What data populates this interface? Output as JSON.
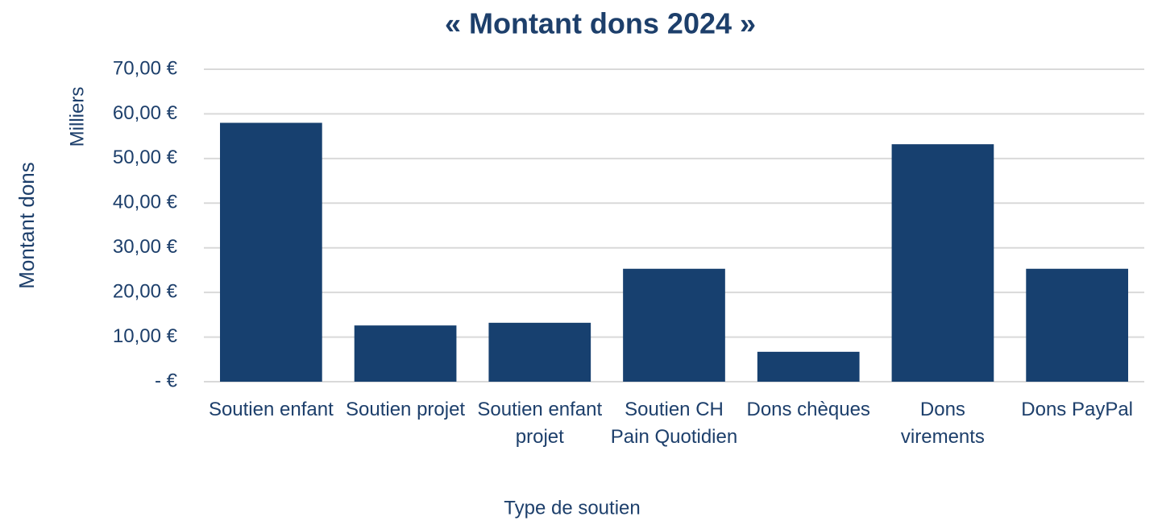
{
  "chart_data": {
    "type": "bar",
    "title": "« Montant dons 2024 »",
    "x_label": "Type de soutien",
    "y_label": "Montant dons",
    "y_unit_label": "Milliers",
    "categories": [
      "Soutien enfant",
      "Soutien projet",
      "Soutien enfant projet",
      "Soutien CH Pain Quotidien",
      "Dons chèques",
      "Dons virements",
      "Dons PayPal"
    ],
    "values": [
      58,
      12.6,
      13.2,
      25.3,
      6.7,
      53.2,
      25.3
    ],
    "color": "#17406f",
    "ylim": [
      0,
      70
    ],
    "yticks": [
      {
        "value": 0,
        "label": "-  €"
      },
      {
        "value": 10,
        "label": "10,00 €"
      },
      {
        "value": 20,
        "label": "20,00 €"
      },
      {
        "value": 30,
        "label": "30,00 €"
      },
      {
        "value": 40,
        "label": "40,00 €"
      },
      {
        "value": 50,
        "label": "50,00 €"
      },
      {
        "value": 60,
        "label": "60,00 €"
      },
      {
        "value": 70,
        "label": "70,00 €"
      }
    ],
    "grid": true
  }
}
